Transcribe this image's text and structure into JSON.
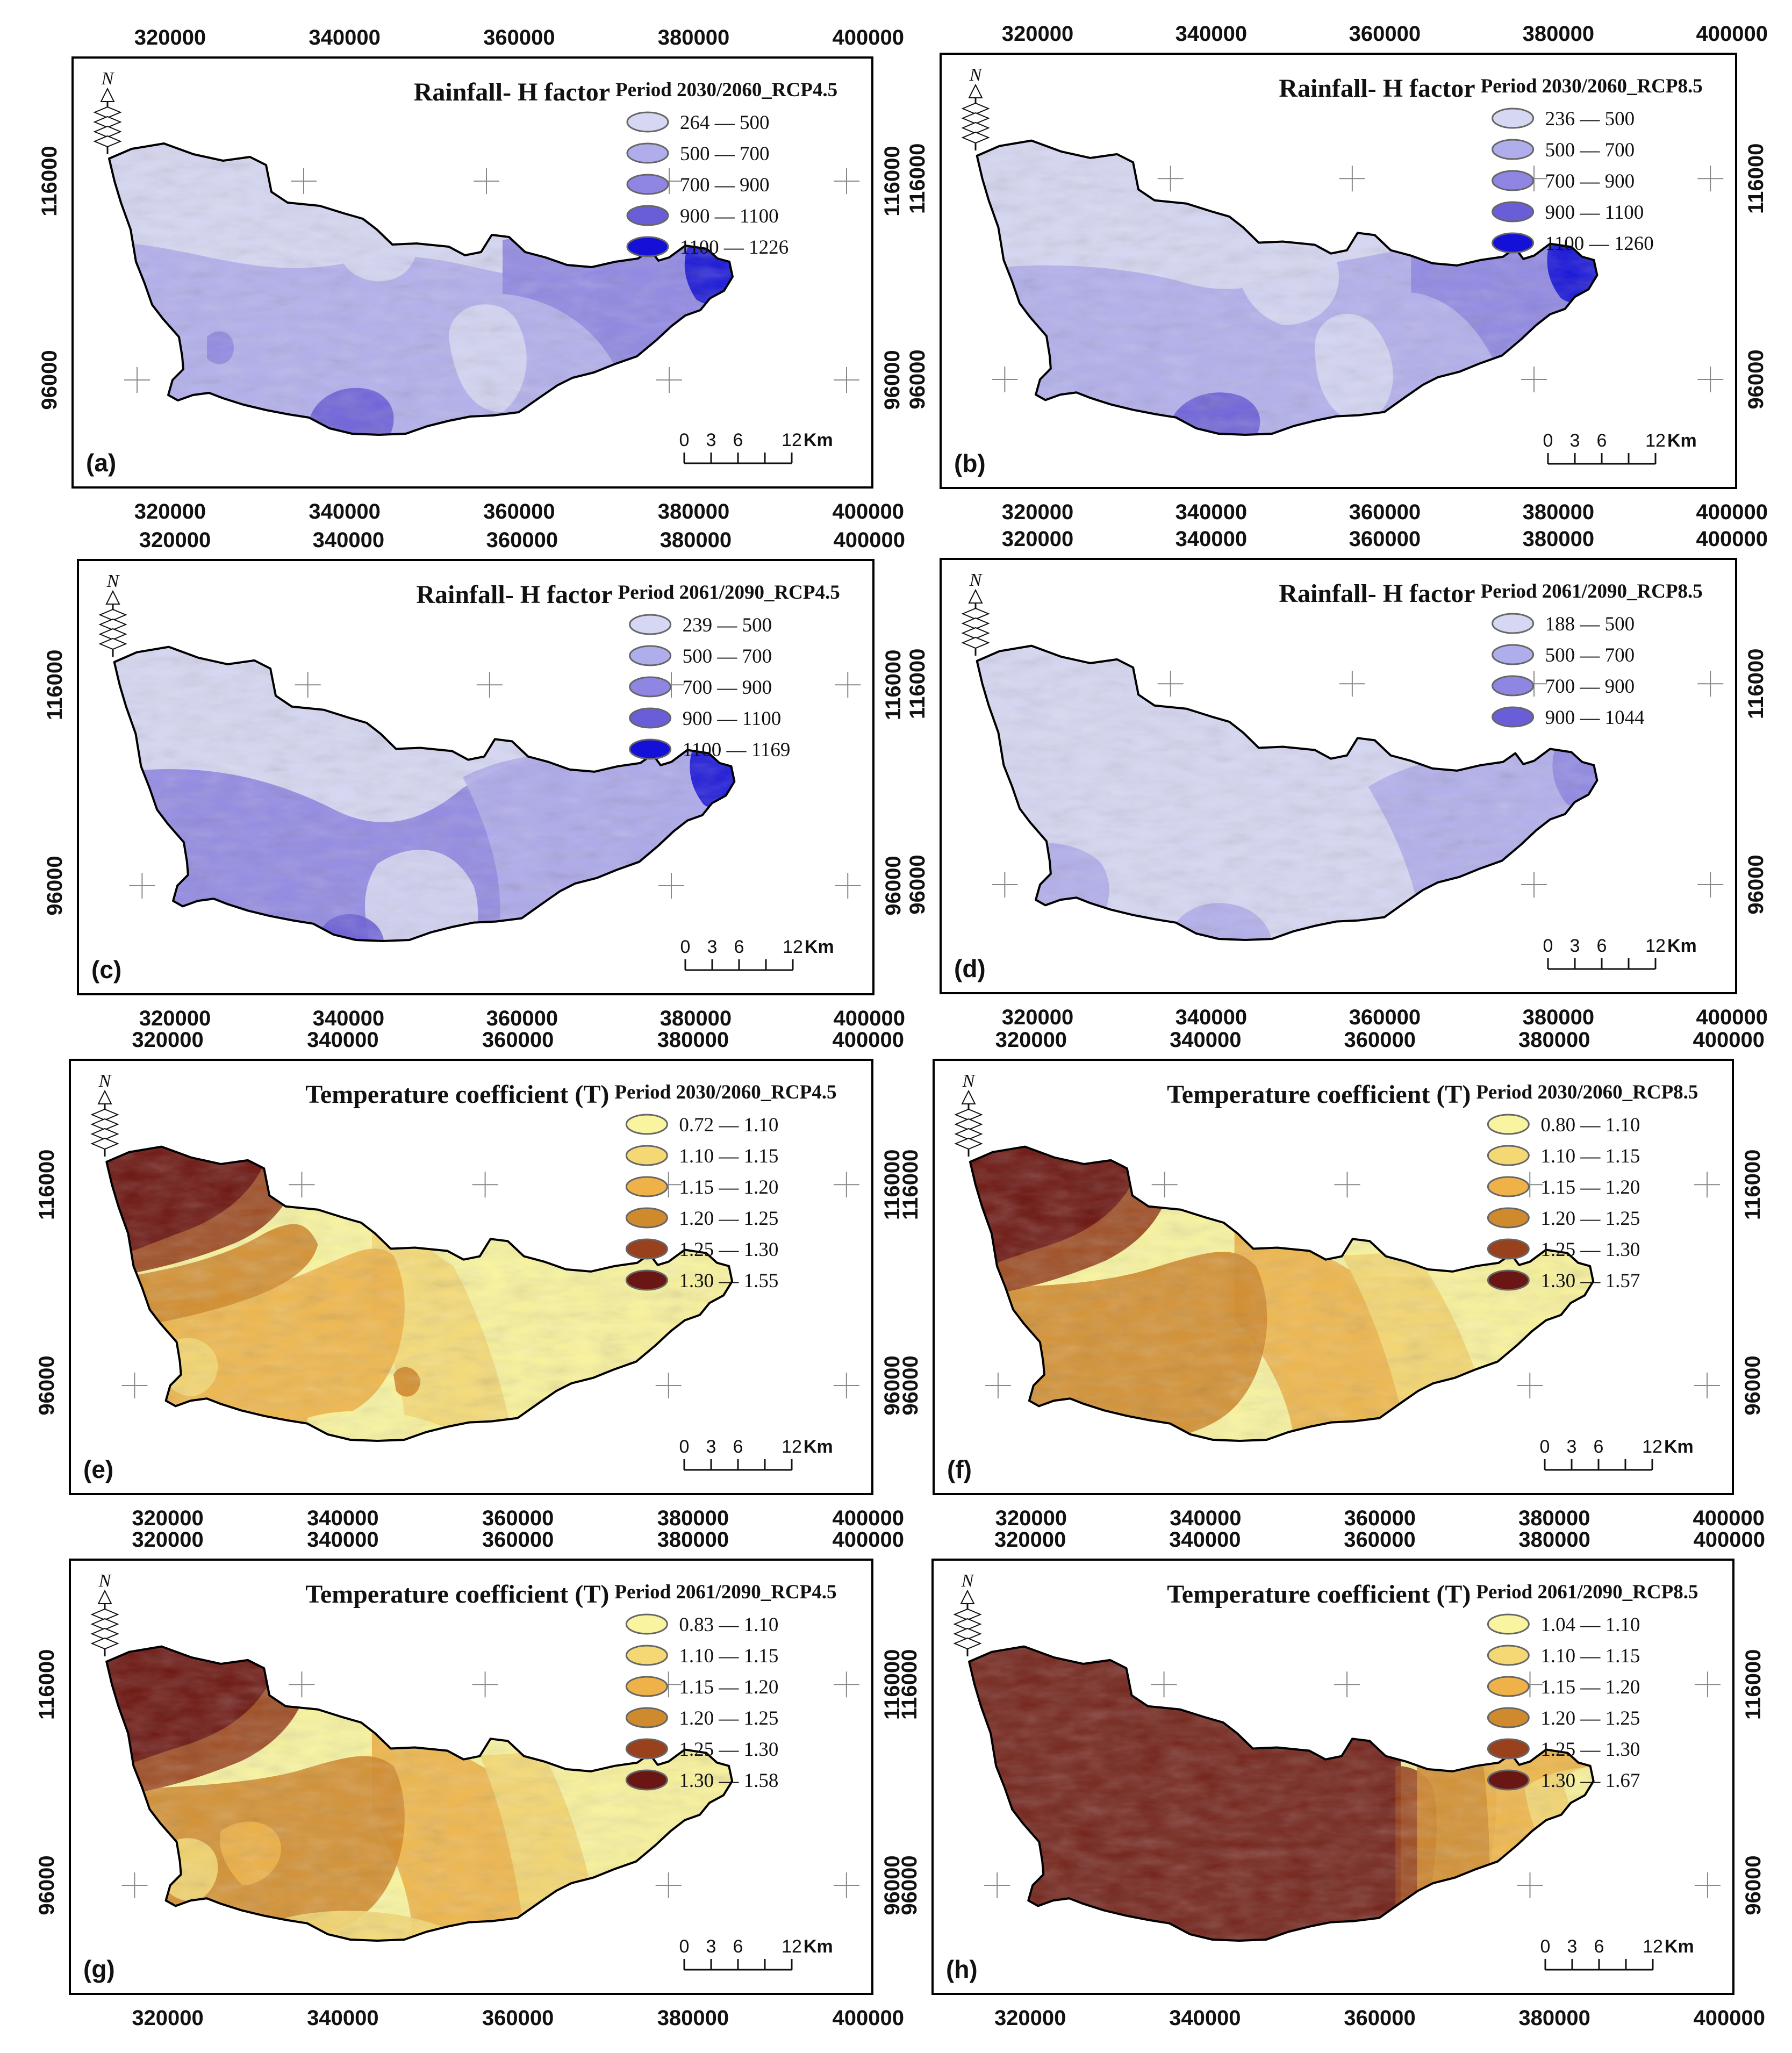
{
  "x_ticks": [
    "320000",
    "340000",
    "360000",
    "380000",
    "400000"
  ],
  "y_ticks": [
    "116000",
    "96000"
  ],
  "north_label": "N",
  "scalebar": {
    "labels": [
      "0",
      "3",
      "6",
      "12"
    ],
    "unit": "Km"
  },
  "colors": {
    "rain": [
      "#d6d7f2",
      "#b0adec",
      "#8e86e2",
      "#6a5ed8",
      "#1410d8"
    ],
    "temp": [
      "#f8f4a0",
      "#f4d874",
      "#eeb248",
      "#d08a2e",
      "#98411c",
      "#6a1614"
    ],
    "outline": "#000000",
    "frame": "#000000"
  },
  "panels": [
    {
      "label": "(a)",
      "title": "Rainfall- H factor",
      "period": "Period 2030/2060_RCP4.5",
      "kind": "rain",
      "legend": [
        "264 — 500",
        "500 — 700",
        "700 — 900",
        "900 — 1100",
        "1100 — 1226"
      ]
    },
    {
      "label": "(b)",
      "title": "Rainfall- H factor",
      "period": "Period 2030/2060_RCP8.5",
      "kind": "rain",
      "legend": [
        "236 — 500",
        "500 — 700",
        "700 — 900",
        "900 — 1100",
        "1100 — 1260"
      ]
    },
    {
      "label": "(c)",
      "title": "Rainfall- H factor",
      "period": "Period 2061/2090_RCP4.5",
      "kind": "rain",
      "legend": [
        "239 — 500",
        "500 — 700",
        "700 — 900",
        "900 — 1100",
        "1100 — 1169"
      ]
    },
    {
      "label": "(d)",
      "title": "Rainfall- H factor",
      "period": "Period 2061/2090_RCP8.5",
      "kind": "rain",
      "legend": [
        "188 — 500",
        "500 — 700",
        "700 — 900",
        "900 — 1044"
      ]
    },
    {
      "label": "(e)",
      "title": "Temperature coefficient (T)",
      "period": "Period 2030/2060_RCP4.5",
      "kind": "temp",
      "legend": [
        "0.72 — 1.10",
        "1.10 — 1.15",
        "1.15 — 1.20",
        "1.20 — 1.25",
        "1.25 — 1.30",
        "1.30 — 1.55"
      ]
    },
    {
      "label": "(f)",
      "title": "Temperature coefficient (T)",
      "period": "Period 2030/2060_RCP8.5",
      "kind": "temp",
      "legend": [
        "0.80 — 1.10",
        "1.10 — 1.15",
        "1.15 — 1.20",
        "1.20 — 1.25",
        "1.25 — 1.30",
        "1.30 — 1.57"
      ]
    },
    {
      "label": "(g)",
      "title": "Temperature coefficient (T)",
      "period": "Period 2061/2090_RCP4.5",
      "kind": "temp",
      "legend": [
        "0.83 — 1.10",
        "1.10 — 1.15",
        "1.15 — 1.20",
        "1.20 — 1.25",
        "1.25 — 1.30",
        "1.30 — 1.58"
      ]
    },
    {
      "label": "(h)",
      "title": "Temperature coefficient (T)",
      "period": "Period 2061/2090_RCP8.5",
      "kind": "temp",
      "legend": [
        "1.04 — 1.10",
        "1.10 — 1.15",
        "1.15 — 1.20",
        "1.20 — 1.25",
        "1.25 — 1.30",
        "1.30 — 1.67"
      ]
    }
  ]
}
